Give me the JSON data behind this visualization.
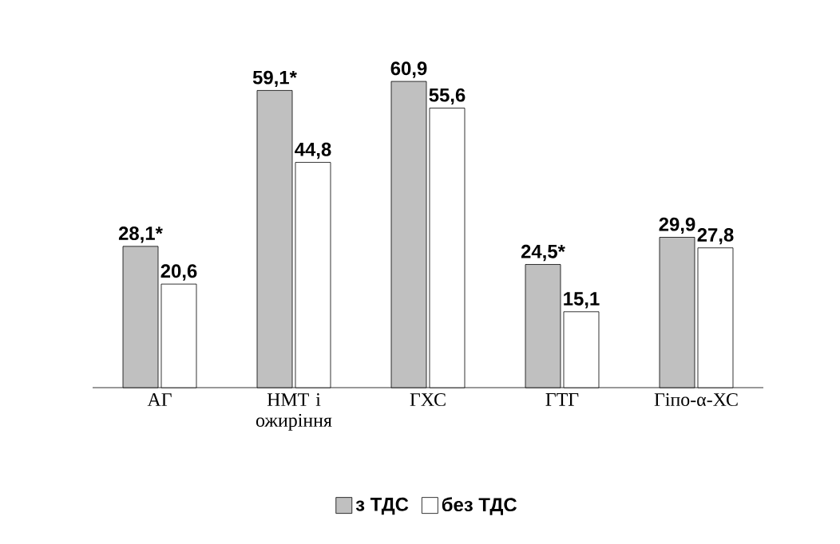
{
  "chart_data": {
    "type": "bar",
    "categories": [
      "АГ",
      "НМТ і ожиріння",
      "ГХС",
      "ГТГ",
      "Гіпо-α-ХС"
    ],
    "series": [
      {
        "name": "з ТДС",
        "color": "#c0c0c0",
        "values": [
          28.1,
          59.1,
          60.9,
          24.5,
          29.9
        ],
        "value_labels": [
          "28,1*",
          "59,1*",
          "60,9",
          "24,5*",
          "29,9"
        ]
      },
      {
        "name": "без ТДС",
        "color": "#ffffff",
        "values": [
          20.6,
          44.8,
          55.6,
          15.1,
          27.8
        ],
        "value_labels": [
          "20,6",
          "44,8",
          "55,6",
          "15,1",
          "27,8"
        ]
      }
    ],
    "legend": "bottom"
  }
}
